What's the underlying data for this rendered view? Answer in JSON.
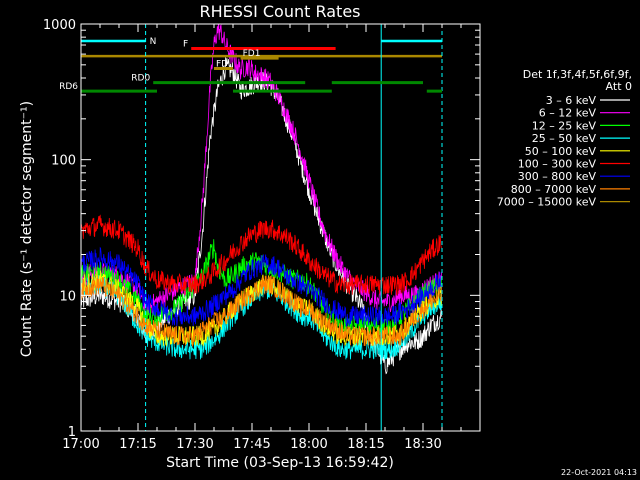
{
  "chart_data": {
    "type": "line",
    "title": "RHESSI Count Rates",
    "xlabel": "Start Time (03-Sep-13 16:59:42)",
    "ylabel": "Count Rate (s⁻¹ detector segment⁻¹)",
    "y_scale": "log",
    "xlim_min": [
      0,
      105
    ],
    "ylim": [
      1,
      1000
    ],
    "x_ticks": [
      {
        "m": 0,
        "label": "17:00"
      },
      {
        "m": 15,
        "label": "17:15"
      },
      {
        "m": 30,
        "label": "17:30"
      },
      {
        "m": 45,
        "label": "17:45"
      },
      {
        "m": 60,
        "label": "18:00"
      },
      {
        "m": 75,
        "label": "18:15"
      },
      {
        "m": 90,
        "label": "18:30"
      }
    ],
    "y_ticks": [
      {
        "v": 1,
        "label": "1"
      },
      {
        "v": 10,
        "label": "10"
      },
      {
        "v": 100,
        "label": "100"
      },
      {
        "v": 1000,
        "label": "1000"
      }
    ],
    "legend_header": [
      "Det 1f,3f,4f,5f,6f,9f,",
      "Att 0"
    ],
    "series": [
      {
        "name": "3 – 6 keV",
        "color": "#ffffff",
        "x": [
          0,
          5,
          10,
          15,
          17,
          20,
          25,
          28,
          30,
          32,
          34,
          36,
          38,
          40,
          42,
          44,
          46,
          48,
          50,
          52,
          54,
          56,
          58,
          60,
          62,
          64,
          66,
          68,
          70,
          72,
          74,
          76,
          78,
          80,
          82,
          84,
          86,
          88,
          90,
          92,
          95
        ],
        "y": [
          9,
          10,
          9,
          7,
          5,
          6,
          8,
          9,
          10,
          30,
          150,
          330,
          480,
          450,
          330,
          340,
          370,
          380,
          350,
          280,
          200,
          140,
          90,
          60,
          40,
          28,
          20,
          15,
          12,
          10,
          8,
          5,
          4,
          3,
          3.5,
          4,
          4.5,
          4.5,
          5,
          6,
          7
        ]
      },
      {
        "name": "6 – 12 keV",
        "color": "#ff00ff",
        "x": [
          0,
          5,
          10,
          15,
          17,
          20,
          25,
          28,
          30,
          32,
          34,
          35,
          36,
          37,
          38,
          40,
          42,
          44,
          46,
          48,
          50,
          52,
          54,
          56,
          58,
          60,
          62,
          64,
          66,
          68,
          70,
          72,
          74,
          76,
          78,
          80,
          82,
          84,
          86,
          88,
          90,
          92,
          95
        ],
        "y": [
          14,
          15,
          14,
          11,
          8,
          9,
          11,
          12,
          13,
          50,
          350,
          700,
          920,
          850,
          700,
          560,
          460,
          490,
          430,
          410,
          370,
          290,
          220,
          160,
          110,
          70,
          45,
          30,
          22,
          17,
          14,
          12,
          11,
          10,
          9,
          9,
          9,
          10,
          10,
          10,
          11,
          12,
          13
        ]
      },
      {
        "name": "12 – 25 keV",
        "color": "#00ff00",
        "x": [
          0,
          5,
          10,
          15,
          17,
          20,
          25,
          28,
          30,
          32,
          34,
          35,
          36,
          38,
          40,
          42,
          44,
          46,
          48,
          50,
          52,
          54,
          56,
          58,
          60,
          62,
          64,
          66,
          68,
          70,
          72,
          74,
          76,
          78,
          80,
          82,
          84,
          86,
          88,
          90,
          92,
          95
        ],
        "y": [
          14,
          15,
          13,
          9,
          7,
          7,
          8,
          10,
          12,
          14,
          20,
          23,
          16,
          13,
          14,
          16,
          17,
          18,
          17,
          16,
          15,
          14,
          13,
          13,
          12,
          10,
          8,
          7,
          6,
          6,
          6,
          6,
          6,
          6,
          6,
          6,
          7,
          8,
          9,
          10,
          11,
          12
        ]
      },
      {
        "name": "25 – 50 keV",
        "color": "#00ffff",
        "x": [
          0,
          5,
          10,
          15,
          17,
          20,
          25,
          28,
          30,
          32,
          34,
          36,
          38,
          40,
          42,
          44,
          46,
          48,
          50,
          52,
          54,
          56,
          58,
          60,
          62,
          64,
          66,
          68,
          70,
          72,
          74,
          76,
          78,
          80,
          82,
          84,
          86,
          88,
          90,
          92,
          95
        ],
        "y": [
          11,
          12,
          10,
          6,
          5,
          4.5,
          4,
          4,
          4,
          4,
          4.5,
          5,
          6,
          7,
          8,
          9,
          10,
          11,
          11,
          10,
          9,
          8,
          7,
          7,
          6,
          5,
          4.5,
          4,
          4,
          4,
          4,
          4,
          4,
          4,
          4,
          4.5,
          5,
          6,
          7,
          8,
          9
        ]
      },
      {
        "name": "50 – 100 keV",
        "color": "#ffff00",
        "x": [
          0,
          5,
          10,
          15,
          17,
          20,
          25,
          28,
          30,
          32,
          34,
          36,
          38,
          40,
          42,
          44,
          46,
          48,
          50,
          52,
          54,
          56,
          58,
          60,
          62,
          64,
          66,
          68,
          70,
          72,
          74,
          76,
          78,
          80,
          82,
          84,
          86,
          88,
          90,
          92,
          95
        ],
        "y": [
          12,
          13,
          11,
          8,
          6,
          5,
          5,
          5,
          5,
          5,
          5.5,
          6,
          7,
          8,
          9,
          10,
          11,
          12,
          12,
          11,
          10,
          9,
          8,
          8,
          7,
          6,
          5.5,
          5,
          5,
          5,
          5,
          5,
          5,
          5,
          5,
          5.5,
          6,
          7,
          8,
          9,
          10
        ]
      },
      {
        "name": "100 – 300 keV",
        "color": "#ff0000",
        "x": [
          0,
          5,
          10,
          15,
          17,
          20,
          25,
          28,
          30,
          32,
          34,
          36,
          38,
          40,
          42,
          44,
          46,
          48,
          50,
          52,
          54,
          56,
          58,
          60,
          62,
          64,
          66,
          68,
          70,
          72,
          74,
          76,
          78,
          80,
          82,
          84,
          86,
          88,
          90,
          92,
          95
        ],
        "y": [
          30,
          33,
          30,
          22,
          16,
          13,
          12,
          12,
          12,
          13,
          14,
          16,
          18,
          21,
          24,
          27,
          29,
          31,
          31,
          29,
          27,
          24,
          21,
          18,
          16,
          14,
          13,
          12,
          12,
          12,
          12,
          12,
          12,
          12,
          12,
          12,
          13,
          15,
          18,
          21,
          25
        ]
      },
      {
        "name": "300 – 800 keV",
        "color": "#0000ff",
        "x": [
          0,
          5,
          10,
          15,
          17,
          20,
          25,
          28,
          30,
          32,
          34,
          36,
          38,
          40,
          42,
          44,
          46,
          48,
          50,
          52,
          54,
          56,
          58,
          60,
          62,
          64,
          66,
          68,
          70,
          72,
          74,
          76,
          78,
          80,
          82,
          84,
          86,
          88,
          90,
          92,
          95
        ],
        "y": [
          17,
          19,
          17,
          12,
          9,
          8,
          7,
          7,
          7,
          7.5,
          8,
          9,
          10,
          11,
          13,
          15,
          16,
          17,
          17,
          16,
          14,
          13,
          12,
          11,
          10,
          9,
          8,
          7.5,
          7,
          7,
          7,
          7,
          7,
          7,
          7,
          7.5,
          8,
          9,
          10,
          11,
          13
        ]
      },
      {
        "name": "800 – 7000 keV",
        "color": "#ff8000",
        "x": [
          0,
          5,
          10,
          15,
          17,
          20,
          25,
          28,
          30,
          32,
          34,
          36,
          38,
          40,
          42,
          44,
          46,
          48,
          50,
          52,
          54,
          56,
          58,
          60,
          62,
          64,
          66,
          68,
          70,
          72,
          74,
          76,
          78,
          80,
          82,
          84,
          86,
          88,
          90,
          92,
          95
        ],
        "y": [
          11,
          12,
          10,
          7,
          6,
          5.5,
          5,
          5,
          5,
          5.5,
          6,
          6.5,
          7,
          8,
          9,
          10,
          11,
          12,
          12,
          11,
          10,
          9,
          8,
          8,
          7,
          6.5,
          6,
          5.5,
          5,
          5,
          5,
          5,
          5,
          5,
          5,
          5,
          6,
          7,
          8,
          9,
          10
        ]
      },
      {
        "name": "7000 – 15000 keV",
        "color": "#aa8800",
        "x": [
          0,
          95
        ],
        "y": [
          580,
          580
        ]
      }
    ],
    "annotations": {
      "att_states": [
        {
          "label": "N",
          "color": "#00ffff",
          "segments": [
            [
              0,
              17
            ],
            [
              79,
              95
            ]
          ]
        }
      ],
      "flags": [
        {
          "label": "F",
          "color": "#ff0000",
          "y": 660,
          "segments": [
            [
              29,
              67
            ]
          ]
        },
        {
          "label": "FD1",
          "color": "#aa8800",
          "y": 560,
          "segments": [
            [
              42,
              52
            ]
          ]
        },
        {
          "label": "FD",
          "color": "#aa8800",
          "y": 470,
          "segments": [
            [
              35,
              40
            ]
          ]
        },
        {
          "label": "RD0",
          "color": "#008800",
          "y": 370,
          "segments": [
            [
              19,
              59
            ],
            [
              66,
              90
            ]
          ]
        },
        {
          "label": "RD6",
          "color": "#008800",
          "y": 320,
          "segments": [
            [
              0,
              20
            ],
            [
              40,
              66
            ],
            [
              91,
              95
            ]
          ]
        }
      ],
      "vlines": [
        {
          "m": 17,
          "color": "#00ffff",
          "style": "dashed"
        },
        {
          "m": 79,
          "color": "#00ffff",
          "style": "solid"
        },
        {
          "m": 95,
          "color": "#00ffff",
          "style": "dashed"
        }
      ]
    },
    "grid": false,
    "legend_position": "right"
  },
  "footer": {
    "date_stamp": "22-Oct-2021 04:13"
  }
}
